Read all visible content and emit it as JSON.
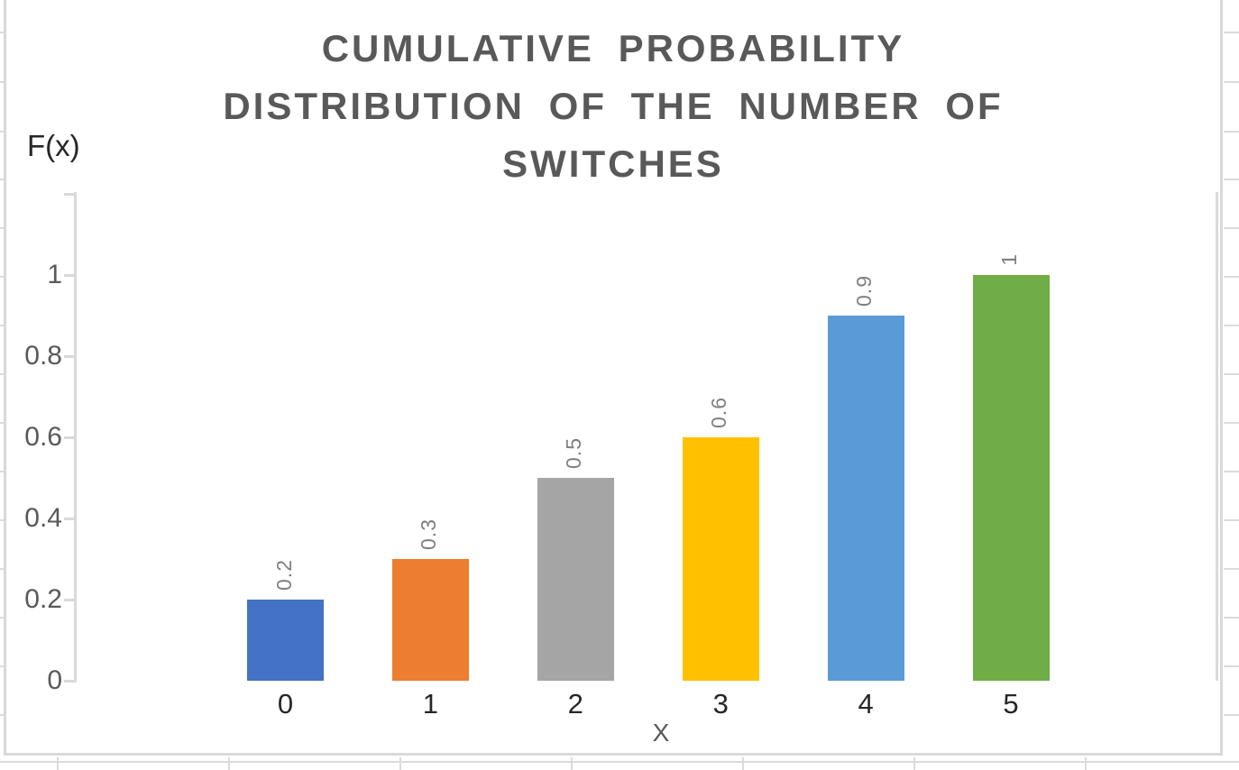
{
  "title": {
    "lines": [
      "CUMULATIVE PROBABILITY",
      "DISTRIBUTION OF THE NUMBER OF",
      "SWITCHES"
    ]
  },
  "axes": {
    "y_title": "F(x)",
    "x_title": "X"
  },
  "chart_data": {
    "type": "bar",
    "title": "CUMULATIVE PROBABILITY DISTRIBUTION OF THE NUMBER OF SWITCHES",
    "xlabel": "X",
    "ylabel": "F(x)",
    "categories": [
      "0",
      "1",
      "2",
      "3",
      "4",
      "5"
    ],
    "values": [
      0.2,
      0.3,
      0.5,
      0.6,
      0.9,
      1
    ],
    "data_labels": [
      "0.2",
      "0.3",
      "0.5",
      "0.6",
      "0.9",
      "1"
    ],
    "bar_colors": [
      "#4472C4",
      "#ED7D31",
      "#A5A5A5",
      "#FFC000",
      "#5B9BD5",
      "#70AD47"
    ],
    "y_tick_labels": [
      "1",
      "0.8",
      "0.6",
      "0.4",
      "0.2",
      "0"
    ],
    "y_tick_values": [
      1,
      0.8,
      0.6,
      0.4,
      0.2,
      0
    ],
    "ylim": [
      0,
      1.2
    ],
    "grid": false,
    "legend": false,
    "colors": {
      "axis_line": "#D9D9D9",
      "tick_label": "#595959",
      "category_label": "#262626",
      "data_label": "#7F7F7F",
      "title": "#595959"
    }
  }
}
